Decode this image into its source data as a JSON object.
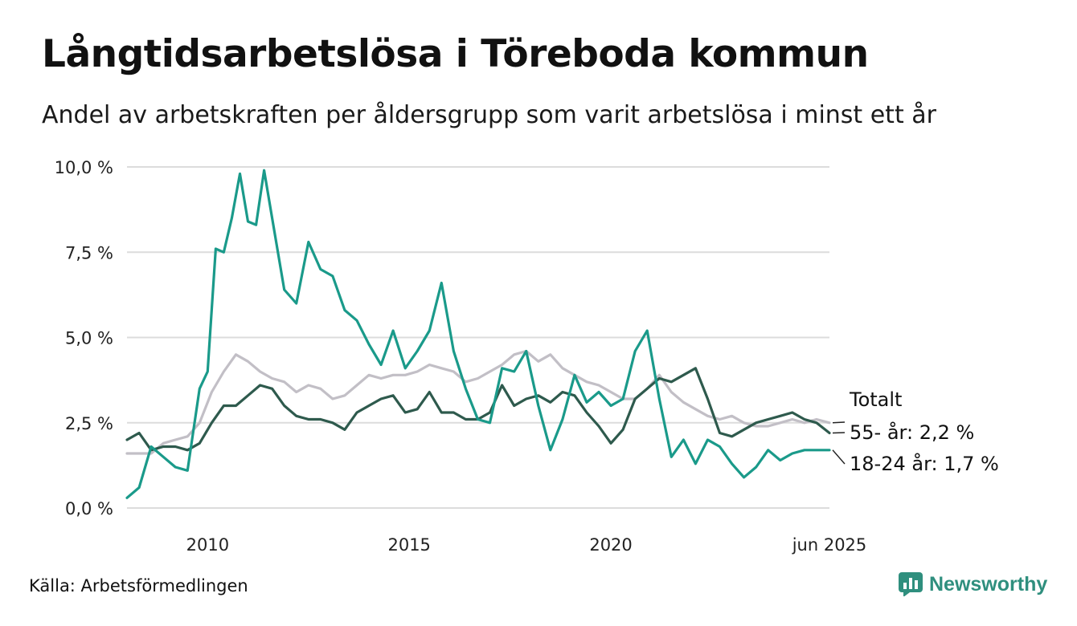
{
  "title": "Långtidsarbetslösa i Töreboda kommun",
  "subtitle": "Andel av arbetskraften per åldersgrupp som varit arbetslösa i minst ett år",
  "source": "Källa: Arbetsförmedlingen",
  "brand": {
    "name": "Newsworthy",
    "icon": "bar-chart-logo-icon"
  },
  "chart_data": {
    "type": "line",
    "y_ticks": [
      {
        "value": 0,
        "label": "0,0 %"
      },
      {
        "value": 2.5,
        "label": "2,5 %"
      },
      {
        "value": 5,
        "label": "5,0 %"
      },
      {
        "value": 7.5,
        "label": "7,5 %"
      },
      {
        "value": 10,
        "label": "10,0 %"
      }
    ],
    "x_ticks": [
      {
        "value": 2010,
        "label": "2010"
      },
      {
        "value": 2015,
        "label": "2015"
      },
      {
        "value": 2020,
        "label": "2020"
      },
      {
        "value": 2025.42,
        "label": "jun 2025"
      }
    ],
    "xlim": [
      2008.0,
      2025.42
    ],
    "ylim": [
      0,
      10
    ],
    "grid": true,
    "series": [
      {
        "name": "Totalt",
        "color": "#c2bfc6",
        "end_label": "Totalt",
        "x": [
          2008.0,
          2008.3,
          2008.6,
          2008.9,
          2009.2,
          2009.5,
          2009.8,
          2010.1,
          2010.4,
          2010.7,
          2011.0,
          2011.3,
          2011.6,
          2011.9,
          2012.2,
          2012.5,
          2012.8,
          2013.1,
          2013.4,
          2013.7,
          2014.0,
          2014.3,
          2014.6,
          2014.9,
          2015.2,
          2015.5,
          2015.8,
          2016.1,
          2016.4,
          2016.7,
          2017.0,
          2017.3,
          2017.6,
          2017.9,
          2018.2,
          2018.5,
          2018.8,
          2019.1,
          2019.4,
          2019.7,
          2020.0,
          2020.3,
          2020.6,
          2020.9,
          2021.2,
          2021.5,
          2021.8,
          2022.1,
          2022.4,
          2022.7,
          2023.0,
          2023.3,
          2023.6,
          2023.9,
          2024.2,
          2024.5,
          2024.8,
          2025.1,
          2025.42
        ],
        "y": [
          1.6,
          1.6,
          1.6,
          1.9,
          2.0,
          2.1,
          2.5,
          3.4,
          4.0,
          4.5,
          4.3,
          4.0,
          3.8,
          3.7,
          3.4,
          3.6,
          3.5,
          3.2,
          3.3,
          3.6,
          3.9,
          3.8,
          3.9,
          3.9,
          4.0,
          4.2,
          4.1,
          4.0,
          3.7,
          3.8,
          4.0,
          4.2,
          4.5,
          4.6,
          4.3,
          4.5,
          4.1,
          3.9,
          3.7,
          3.6,
          3.4,
          3.2,
          3.2,
          3.5,
          3.9,
          3.4,
          3.1,
          2.9,
          2.7,
          2.6,
          2.7,
          2.5,
          2.4,
          2.4,
          2.5,
          2.6,
          2.5,
          2.6,
          2.5
        ]
      },
      {
        "name": "55-",
        "color": "#2e5a4d",
        "end_label": "55- år: 2,2 %",
        "x": [
          2008.0,
          2008.3,
          2008.6,
          2008.9,
          2009.2,
          2009.5,
          2009.8,
          2010.1,
          2010.4,
          2010.7,
          2011.0,
          2011.3,
          2011.6,
          2011.9,
          2012.2,
          2012.5,
          2012.8,
          2013.1,
          2013.4,
          2013.7,
          2014.0,
          2014.3,
          2014.6,
          2014.9,
          2015.2,
          2015.5,
          2015.8,
          2016.1,
          2016.4,
          2016.7,
          2017.0,
          2017.3,
          2017.6,
          2017.9,
          2018.2,
          2018.5,
          2018.8,
          2019.1,
          2019.4,
          2019.7,
          2020.0,
          2020.3,
          2020.6,
          2020.9,
          2021.2,
          2021.5,
          2021.8,
          2022.1,
          2022.4,
          2022.7,
          2023.0,
          2023.3,
          2023.6,
          2023.9,
          2024.2,
          2024.5,
          2024.8,
          2025.1,
          2025.42
        ],
        "y": [
          2.0,
          2.2,
          1.7,
          1.8,
          1.8,
          1.7,
          1.9,
          2.5,
          3.0,
          3.0,
          3.3,
          3.6,
          3.5,
          3.0,
          2.7,
          2.6,
          2.6,
          2.5,
          2.3,
          2.8,
          3.0,
          3.2,
          3.3,
          2.8,
          2.9,
          3.4,
          2.8,
          2.8,
          2.6,
          2.6,
          2.8,
          3.6,
          3.0,
          3.2,
          3.3,
          3.1,
          3.4,
          3.3,
          2.8,
          2.4,
          1.9,
          2.3,
          3.2,
          3.5,
          3.8,
          3.7,
          3.9,
          4.1,
          3.2,
          2.2,
          2.1,
          2.3,
          2.5,
          2.6,
          2.7,
          2.8,
          2.6,
          2.5,
          2.2
        ]
      },
      {
        "name": "18-24",
        "color": "#1a9a8a",
        "end_label": "18-24 år: 1,7 %",
        "x": [
          2008.0,
          2008.3,
          2008.6,
          2008.9,
          2009.2,
          2009.5,
          2009.8,
          2010.0,
          2010.2,
          2010.4,
          2010.6,
          2010.8,
          2011.0,
          2011.2,
          2011.4,
          2011.6,
          2011.9,
          2012.2,
          2012.5,
          2012.8,
          2013.1,
          2013.4,
          2013.7,
          2014.0,
          2014.3,
          2014.6,
          2014.9,
          2015.2,
          2015.5,
          2015.8,
          2016.1,
          2016.4,
          2016.7,
          2017.0,
          2017.3,
          2017.6,
          2017.9,
          2018.2,
          2018.5,
          2018.8,
          2019.1,
          2019.4,
          2019.7,
          2020.0,
          2020.3,
          2020.6,
          2020.9,
          2021.2,
          2021.5,
          2021.8,
          2022.1,
          2022.4,
          2022.7,
          2023.0,
          2023.3,
          2023.6,
          2023.9,
          2024.2,
          2024.5,
          2024.8,
          2025.1,
          2025.42
        ],
        "y": [
          0.3,
          0.6,
          1.8,
          1.5,
          1.2,
          1.1,
          3.5,
          4.0,
          7.6,
          7.5,
          8.5,
          9.8,
          8.4,
          8.3,
          9.9,
          8.5,
          6.4,
          6.0,
          7.8,
          7.0,
          6.8,
          5.8,
          5.5,
          4.8,
          4.2,
          5.2,
          4.1,
          4.6,
          5.2,
          6.6,
          4.6,
          3.5,
          2.6,
          2.5,
          4.1,
          4.0,
          4.6,
          3.0,
          1.7,
          2.6,
          3.9,
          3.1,
          3.4,
          3.0,
          3.2,
          4.6,
          5.2,
          3.2,
          1.5,
          2.0,
          1.3,
          2.0,
          1.8,
          1.3,
          0.9,
          1.2,
          1.7,
          1.4,
          1.6,
          1.7,
          1.7,
          1.7
        ]
      }
    ]
  }
}
